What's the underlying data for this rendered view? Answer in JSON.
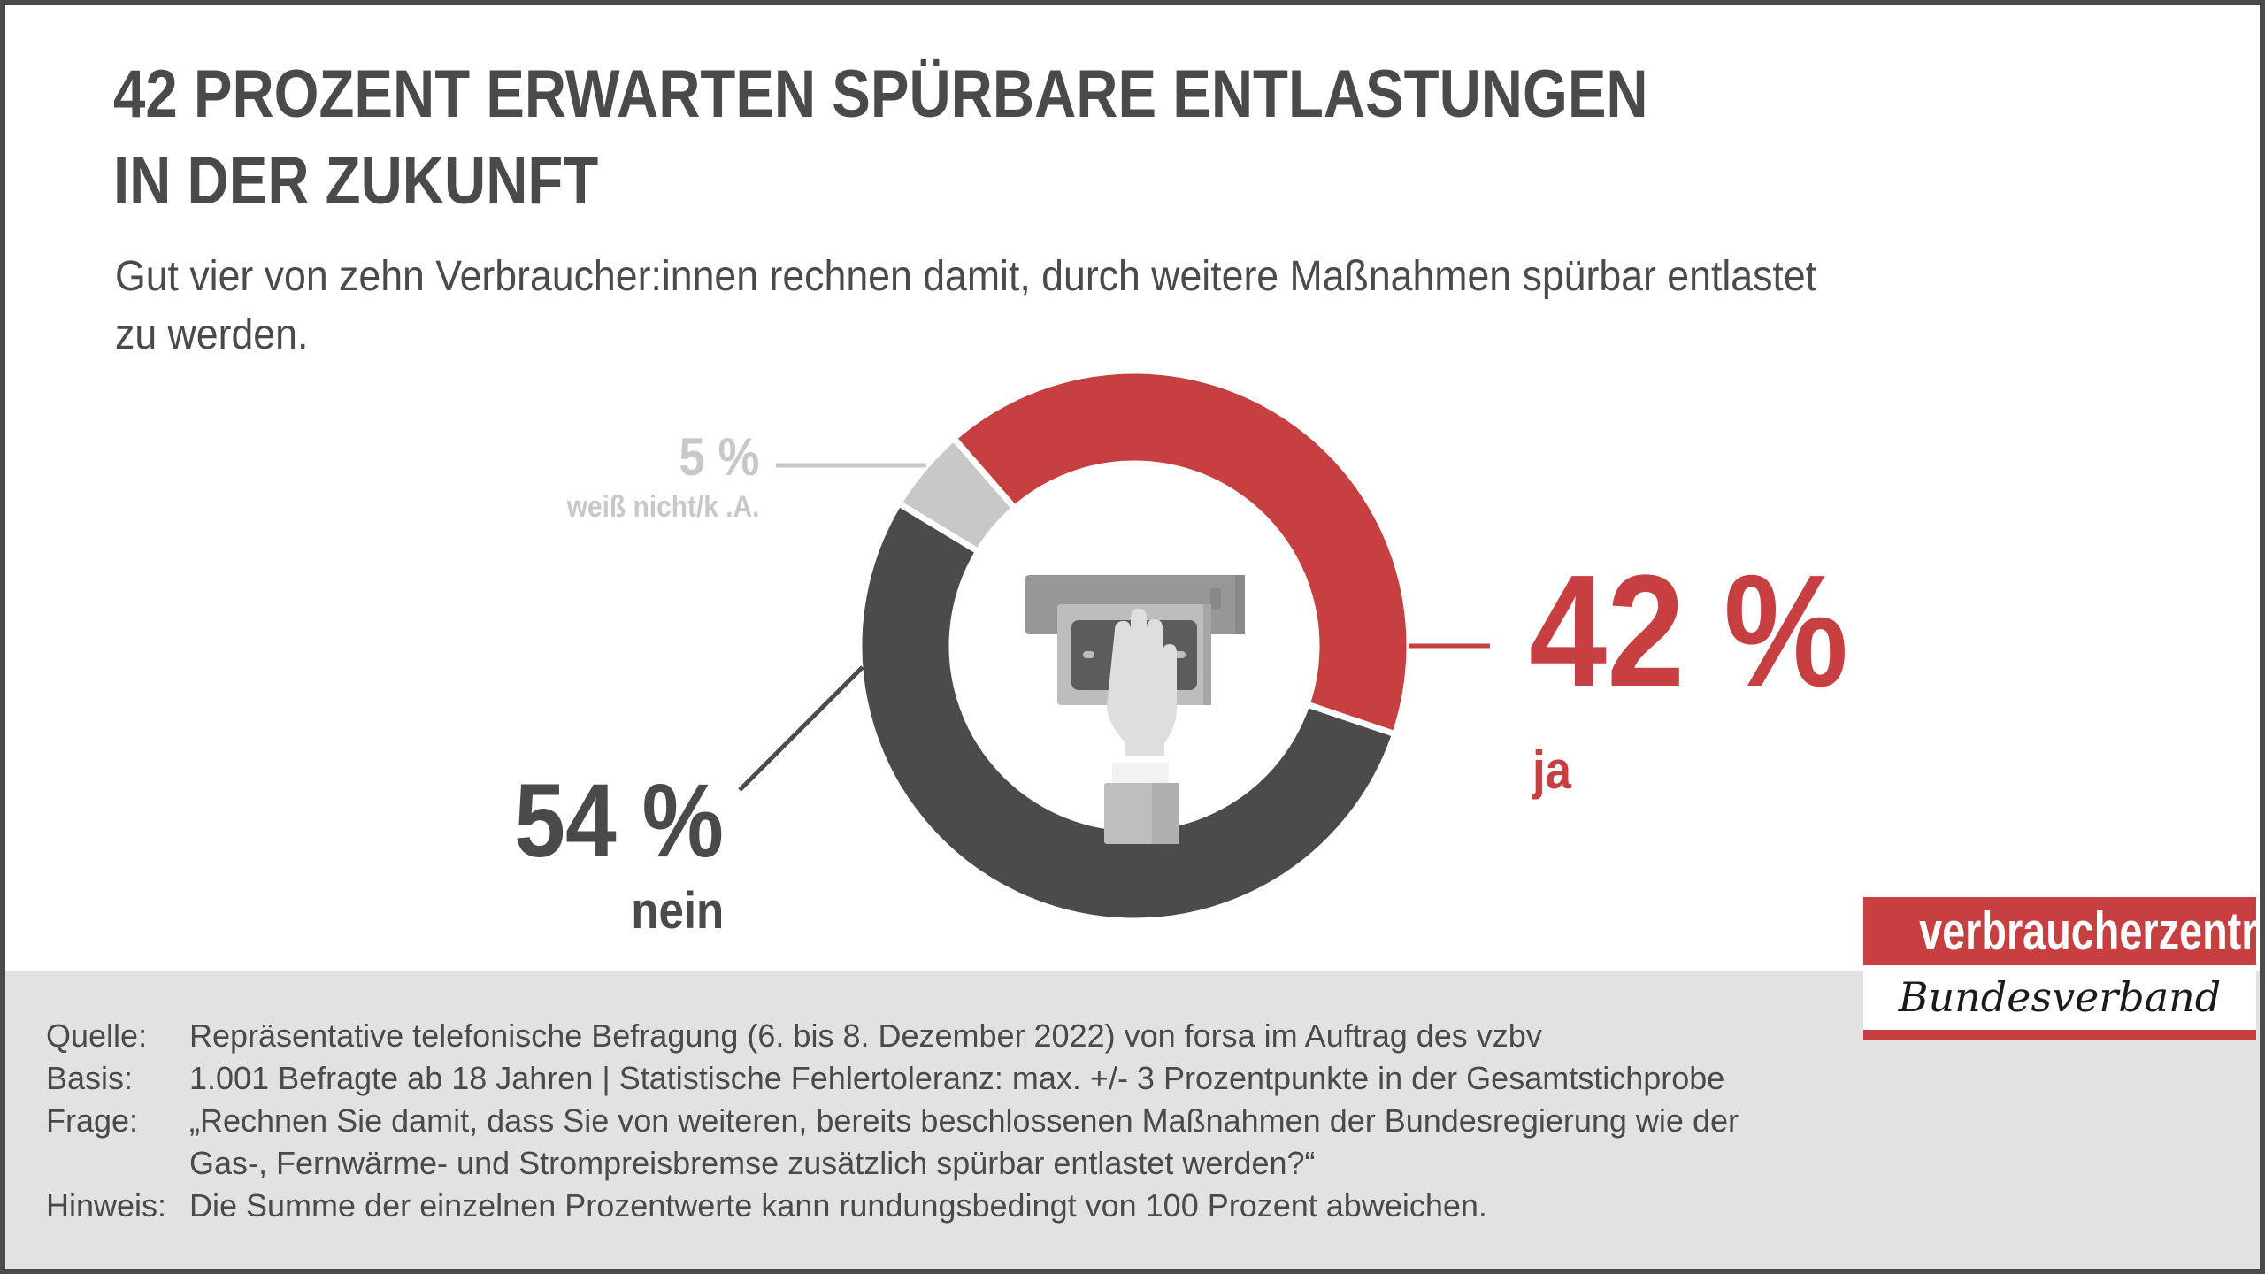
{
  "title_lines": [
    "42 PROZENT ERWARTEN SPÜRBARE ENTLASTUNGEN",
    "IN DER ZUKUNFT"
  ],
  "subtitle": "Gut vier von zehn Verbraucher:innen rechnen damit, durch weitere Maßnahmen spürbar entlastet zu werden.",
  "chart_data": {
    "type": "pie",
    "variant": "donut",
    "center_icon": "atm-hand-cash-icon",
    "series": [
      {
        "name": "ja",
        "label": "42 %",
        "value": 42,
        "color": "#c63f41"
      },
      {
        "name": "nein",
        "label": "54 %",
        "value": 54,
        "color": "#4b4b4d"
      },
      {
        "name": "weiß nicht/k .A.",
        "label": "5 %",
        "value": 5,
        "color": "#c8c8c8"
      }
    ]
  },
  "footer": {
    "rows": [
      {
        "key": "Quelle:",
        "value": "Repräsentative telefonische Befragung (6. bis 8. Dezember 2022) von forsa im Auftrag des vzbv"
      },
      {
        "key": "Basis:",
        "value": "1.001 Befragte ab 18 Jahren | Statistische Fehlertoleranz: max. +/- 3 Prozentpunkte in der Gesamtstichprobe"
      },
      {
        "key": "Frage:",
        "value": "„Rechnen Sie damit, dass Sie von weiteren, bereits beschlossenen Maßnahmen der Bundesregierung wie der"
      },
      {
        "key": "",
        "value": "Gas-, Fernwärme- und Strompreisbremse zusätzlich spürbar entlastet werden?“"
      },
      {
        "key": "Hinweis:",
        "value": "Die Summe der einzelnen Prozentwerte kann rundungsbedingt von 100 Prozent abweichen."
      }
    ]
  },
  "logo": {
    "top": "verbraucherzentrale",
    "bottom": "Bundesverband",
    "color": "#c63f41"
  }
}
